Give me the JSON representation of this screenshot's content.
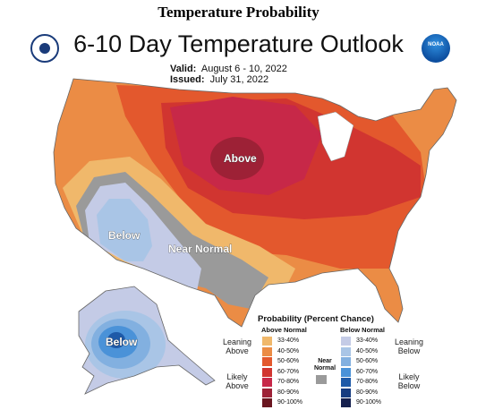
{
  "page_heading": "Temperature Probability",
  "map_title": "6-10 Day Temperature Outlook",
  "valid_label": "Valid:",
  "valid_value": "August 6 - 10, 2022",
  "issued_label": "Issued:",
  "issued_value": "July 31, 2022",
  "logos": {
    "left": "doc-seal-icon",
    "right": "noaa-logo-icon",
    "right_text": "NOAA"
  },
  "region_labels": {
    "above": "Above",
    "below_southwest": "Below",
    "near_normal": "Near Normal",
    "below_alaska": "Below"
  },
  "colors": {
    "above_33_40": "#f0b86b",
    "above_40_50": "#eb8c45",
    "above_50_60": "#e3582d",
    "above_60_70": "#d13530",
    "above_70_80": "#c72848",
    "above_80_90": "#9d2136",
    "above_90_100": "#6a1620",
    "below_33_40": "#c4cbe6",
    "below_40_50": "#a9c5e6",
    "below_50_60": "#82b0e0",
    "below_60_70": "#4a92d8",
    "below_70_80": "#1e5aa8",
    "below_80_90": "#163c80",
    "below_90_100": "#15204e",
    "near_normal": "#9a9a9a"
  },
  "legend": {
    "title": "Probability (Percent Chance)",
    "above_header": "Above Normal",
    "below_header": "Below Normal",
    "near_normal": "Near Normal",
    "leaning_above": "Leaning Above",
    "likely_above": "Likely Above",
    "leaning_below": "Leaning Below",
    "likely_below": "Likely Below",
    "ranges": [
      "33-40%",
      "40-50%",
      "50-60%",
      "60-70%",
      "70-80%",
      "80-90%",
      "90-100%"
    ]
  }
}
